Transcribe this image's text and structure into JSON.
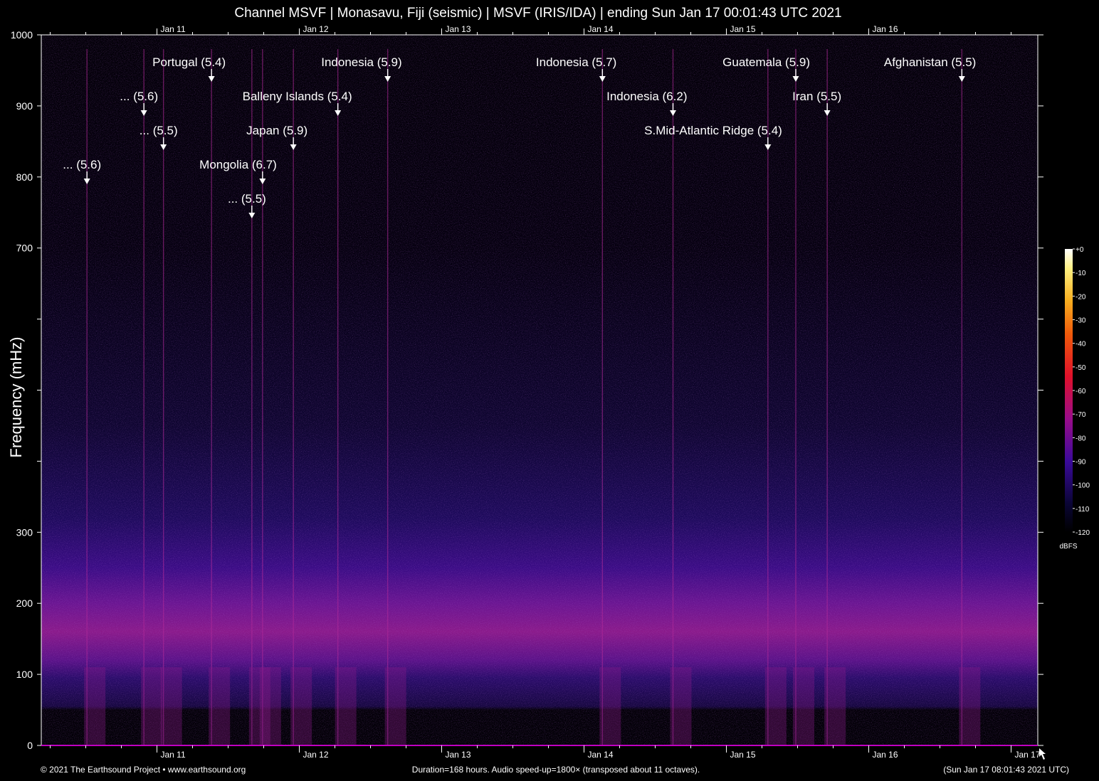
{
  "title": "Channel MSVF | Monasavu, Fiji (seismic) | MSVF (IRIS/IDA) | ending Sun Jan 17 00:01:43 UTC 2021",
  "footer": {
    "left": "© 2021 The Earthsound Project • www.earthsound.org",
    "center": "Duration=168 hours. Audio speed-up=1800× (transposed about 11 octaves).",
    "right": "(Sun Jan 17 08:01:43 2021 UTC)"
  },
  "colors": {
    "background": "#000000",
    "axis": "#ffffff",
    "spectrogram_low": "#06001a",
    "spectrogram_mid": "#3a0a8a",
    "spectrogram_high": "#c0207a"
  },
  "chart_data": {
    "type": "heatmap",
    "title": "Channel MSVF | Monasavu, Fiji (seismic) | MSVF (IRIS/IDA) | ending Sun Jan 17 00:01:43 UTC 2021",
    "xlabel": "",
    "ylabel": "Frequency (mHz)",
    "x_range_hours": [
      0,
      168
    ],
    "ylim": [
      0,
      1000
    ],
    "y_ticks": [
      0,
      100,
      200,
      300,
      700,
      800,
      900,
      1000
    ],
    "y_minor_ticks": [
      400,
      500,
      600
    ],
    "bottom_day_ticks": [
      {
        "label": "Jan 11",
        "hour": 19.5
      },
      {
        "label": "Jan 12",
        "hour": 43.5
      },
      {
        "label": "Jan 13",
        "hour": 67.5
      },
      {
        "label": "Jan 14",
        "hour": 91.5
      },
      {
        "label": "Jan 15",
        "hour": 115.5
      },
      {
        "label": "Jan 16",
        "hour": 139.5
      },
      {
        "label": "Jan 17",
        "hour": 163.5
      }
    ],
    "top_day_ticks": [
      {
        "label": "Jan 11",
        "hour": 19.5
      },
      {
        "label": "Jan 12",
        "hour": 43.5
      },
      {
        "label": "Jan 13",
        "hour": 67.5
      },
      {
        "label": "Jan 14",
        "hour": 91.5
      },
      {
        "label": "Jan 15",
        "hour": 115.5
      },
      {
        "label": "Jan 16",
        "hour": 139.5
      }
    ],
    "earthquakes": [
      {
        "label": "... (5.6)",
        "hour": 7.7
      },
      {
        "label": "... (5.6)",
        "hour": 17.3
      },
      {
        "label": "... (5.5)",
        "hour": 20.6
      },
      {
        "label": "Portugal (5.4)",
        "hour": 28.7
      },
      {
        "label": "Mongolia (6.7)",
        "hour": 37.3
      },
      {
        "label": "... (5.5)",
        "hour": 35.5
      },
      {
        "label": "Japan (5.9)",
        "hour": 42.5
      },
      {
        "label": "Balleny Islands (5.4)",
        "hour": 50.0
      },
      {
        "label": "Indonesia (5.9)",
        "hour": 58.4
      },
      {
        "label": "Indonesia (5.7)",
        "hour": 94.6
      },
      {
        "label": "Indonesia (6.2)",
        "hour": 106.5
      },
      {
        "label": "S.Mid-Atlantic Ridge (5.4)",
        "hour": 122.5
      },
      {
        "label": "Guatemala (5.9)",
        "hour": 127.2
      },
      {
        "label": "Iran (5.5)",
        "hour": 132.5
      },
      {
        "label": "Afghanistan (5.5)",
        "hour": 155.2
      }
    ],
    "colorbar": {
      "label": "dBFS",
      "ticks": [
        "+0",
        "-10",
        "-20",
        "-30",
        "-40",
        "-50",
        "-60",
        "-70",
        "-80",
        "-90",
        "-100",
        "-110",
        "-120"
      ],
      "range": [
        -120,
        0
      ]
    }
  }
}
